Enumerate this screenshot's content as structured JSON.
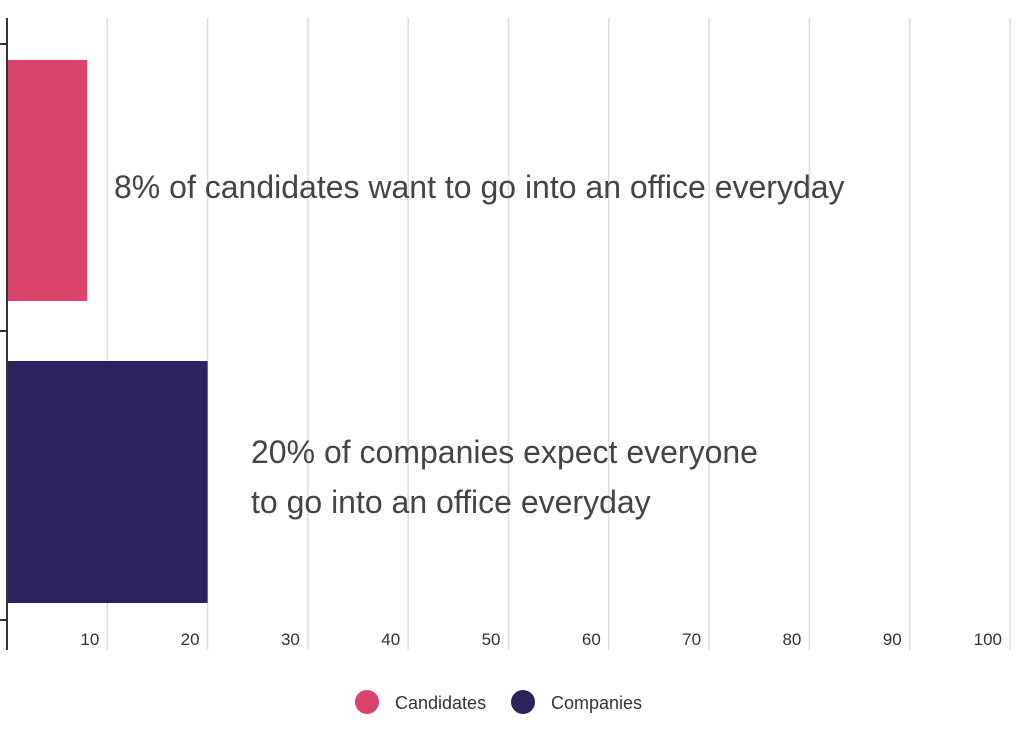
{
  "chart_data": {
    "type": "bar",
    "orientation": "horizontal",
    "categories": [
      "Candidates",
      "Companies"
    ],
    "values": [
      8,
      20
    ],
    "xlim": [
      0,
      100
    ],
    "x_ticks": [
      "10",
      "20",
      "30",
      "40",
      "50",
      "60",
      "70",
      "80",
      "90",
      "100"
    ],
    "grid": true,
    "legend_position": "bottom-center",
    "series": [
      {
        "name": "Candidates",
        "value": 8,
        "color": "#D9436E"
      },
      {
        "name": "Companies",
        "value": 20,
        "color": "#2B235C"
      }
    ],
    "annotations": [
      {
        "lines": [
          "8% of candidates want to go into an office everyday"
        ]
      },
      {
        "lines": [
          "20% of companies expect everyone",
          "to go into an office everyday"
        ]
      }
    ],
    "colors": {
      "grid": "#DDDDDD",
      "axis": "#333333",
      "text": "#444444"
    }
  }
}
